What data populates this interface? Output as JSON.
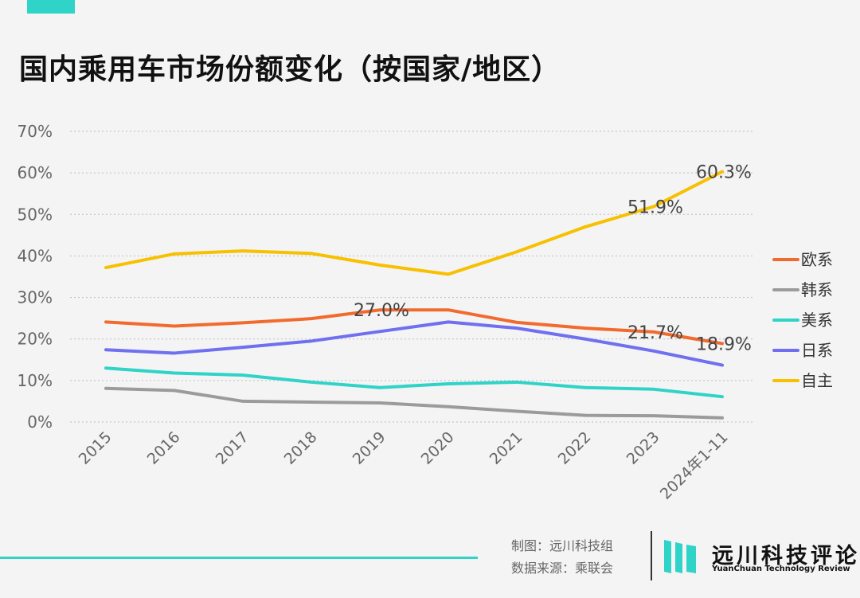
{
  "title": "国内乘用车市场份额变化（按国家/地区）",
  "colors": {
    "accent": "#2fd3c8",
    "grid": "#bdbdbd",
    "axis_text": "#666666"
  },
  "chart_data": {
    "type": "line",
    "x": [
      "2015",
      "2016",
      "2017",
      "2018",
      "2019",
      "2020",
      "2021",
      "2022",
      "2023",
      "2024年1-11"
    ],
    "ylim": [
      0,
      70
    ],
    "yticks": [
      "0%",
      "10%",
      "20%",
      "30%",
      "40%",
      "50%",
      "60%",
      "70%"
    ],
    "grid": true,
    "legend_position": "right",
    "series": [
      {
        "name": "欧系",
        "color": "#f26b2e",
        "values": [
          24.1,
          23.1,
          23.9,
          24.9,
          27.0,
          27.0,
          24.0,
          22.6,
          21.7,
          18.9
        ]
      },
      {
        "name": "韩系",
        "color": "#9b9b9b",
        "values": [
          8.1,
          7.6,
          5.0,
          4.8,
          4.6,
          3.7,
          2.6,
          1.6,
          1.5,
          1.0
        ]
      },
      {
        "name": "美系",
        "color": "#2fd3c8",
        "values": [
          13.0,
          11.8,
          11.3,
          9.6,
          8.3,
          9.2,
          9.6,
          8.3,
          7.9,
          6.1
        ]
      },
      {
        "name": "日系",
        "color": "#6f6ff0",
        "values": [
          17.4,
          16.6,
          18.0,
          19.5,
          21.8,
          24.1,
          22.6,
          20.0,
          17.1,
          13.7
        ]
      },
      {
        "name": "自主",
        "color": "#f7c000",
        "values": [
          37.2,
          40.5,
          41.2,
          40.6,
          37.8,
          35.6,
          41.0,
          47.0,
          51.9,
          60.3
        ]
      }
    ],
    "annotations": [
      {
        "series": 4,
        "index": 9,
        "label": "60.3%"
      },
      {
        "series": 4,
        "index": 8,
        "label": "51.9%"
      },
      {
        "series": 0,
        "index": 4,
        "label": "27.0%"
      },
      {
        "series": 0,
        "index": 8,
        "label": "21.7%"
      },
      {
        "series": 0,
        "index": 9,
        "label": "18.9%"
      }
    ]
  },
  "footer": {
    "credit_chart": "制图：远川科技组",
    "credit_source": "数据来源：乘联会",
    "brand_name": "远川科技评论",
    "brand_sub": "YuanChuan Technology Review"
  }
}
